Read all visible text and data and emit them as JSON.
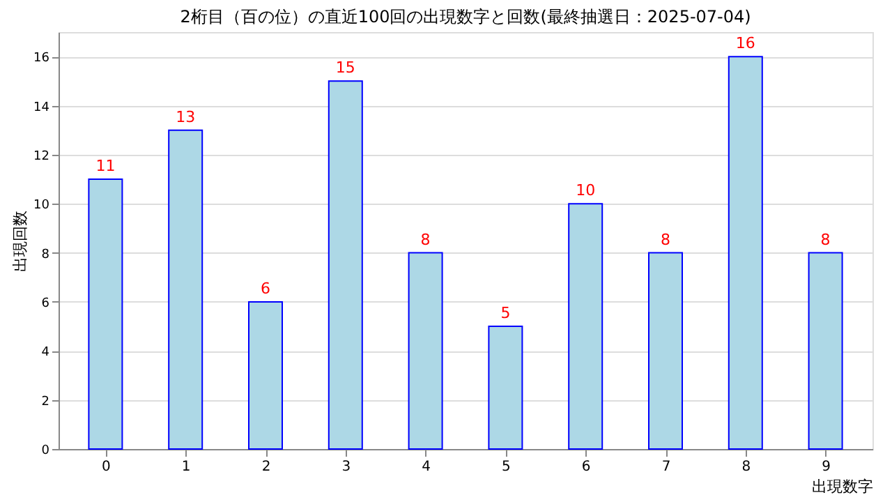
{
  "chart_data": {
    "type": "bar",
    "title": "2桁目（百の位）の直近100回の出現数字と回数(最終抽選日：2025-07-04)",
    "xlabel": "出現数字",
    "ylabel": "出現回数",
    "categories": [
      "0",
      "1",
      "2",
      "3",
      "4",
      "5",
      "6",
      "7",
      "8",
      "9"
    ],
    "values": [
      11,
      13,
      6,
      15,
      8,
      5,
      10,
      8,
      16,
      8
    ],
    "color": "#add8e6",
    "data_labels": true,
    "ylim": [
      0,
      17
    ],
    "yticks": [
      0,
      2,
      4,
      6,
      8,
      10,
      12,
      14,
      16
    ],
    "grid": "y"
  }
}
